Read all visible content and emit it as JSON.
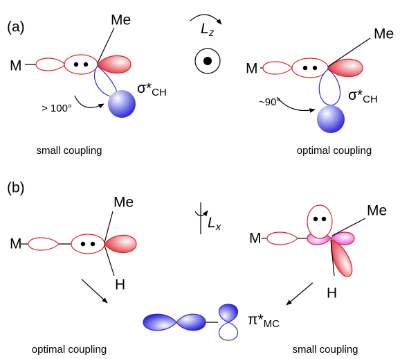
{
  "panel_a": {
    "label": "(a)",
    "left": {
      "metal": "M",
      "methyl": "Me",
      "orbital": "σ*",
      "orbital_sub": "CH",
      "angle": "> 100°",
      "caption": "small coupling"
    },
    "operator": {
      "symbol": "L",
      "sub": "z"
    },
    "right": {
      "metal": "M",
      "methyl": "Me",
      "orbital": "σ*",
      "orbital_sub": "CH",
      "angle": "~90°",
      "caption": "optimal coupling"
    }
  },
  "panel_b": {
    "label": "(b)",
    "left": {
      "metal": "M",
      "methyl": "Me",
      "hydrogen": "H",
      "caption": "optimal coupling"
    },
    "operator": {
      "symbol": "L",
      "sub": "x"
    },
    "right": {
      "metal": "M",
      "methyl": "Me",
      "hydrogen": "H",
      "caption": "small coupling"
    },
    "product": {
      "orbital": "π*",
      "orbital_sub": "MC"
    }
  }
}
